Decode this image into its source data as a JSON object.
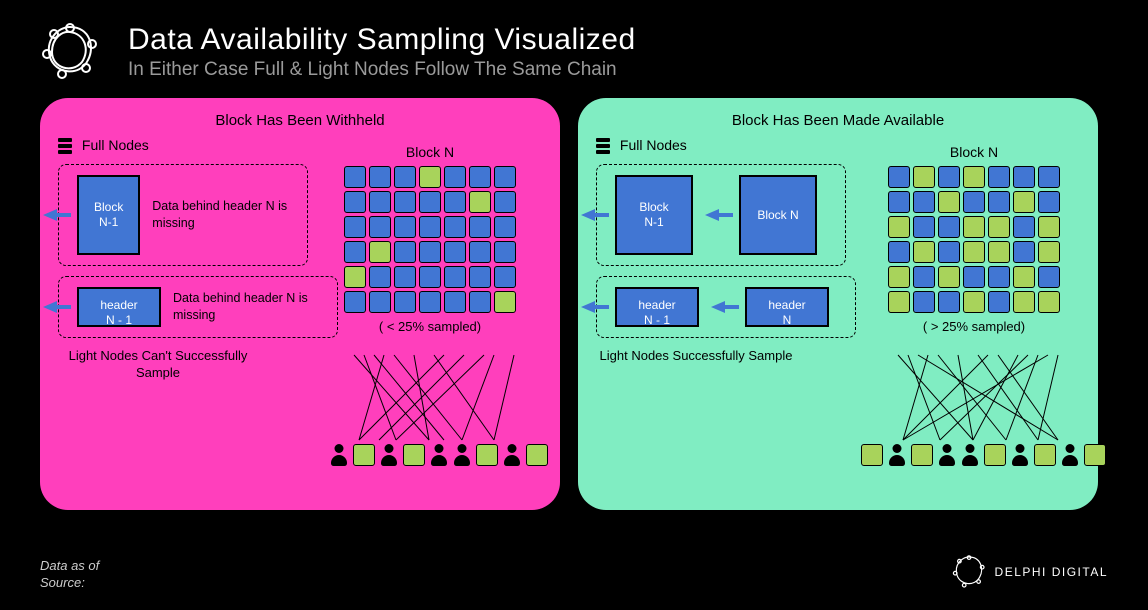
{
  "title": "Data Availability Sampling Visualized",
  "subtitle": "In Either Case Full & Light Nodes Follow The Same Chain",
  "footer1": "Data as of",
  "footer2": "Source:",
  "brand": "DELPHI DIGITAL",
  "colors": {
    "bg": "#000000",
    "panel_left": "#ff3fbc",
    "panel_right": "#80edc2",
    "block_fill": "#4176d3",
    "cell_blue": "#4176d3",
    "cell_green": "#a8d35b",
    "border": "#000000"
  },
  "left": {
    "title": "Block Has Been Withheld",
    "full_nodes_label": "Full Nodes",
    "block_n1": "Block\nN-1",
    "desc1": "Data behind header N is missing",
    "header_n1": "header\nN - 1",
    "desc2": "Data behind header N is missing",
    "grid_label": "Block N",
    "grid_caption": "( < 25% sampled)",
    "light_label": "Light Nodes Can't Successfully Sample",
    "grid": [
      [
        "b",
        "b",
        "b",
        "g",
        "b",
        "b",
        "b"
      ],
      [
        "b",
        "b",
        "b",
        "b",
        "b",
        "g",
        "b"
      ],
      [
        "b",
        "b",
        "b",
        "b",
        "b",
        "b",
        "b"
      ],
      [
        "b",
        "g",
        "b",
        "b",
        "b",
        "b",
        "b"
      ],
      [
        "g",
        "b",
        "b",
        "b",
        "b",
        "b",
        "b"
      ],
      [
        "b",
        "b",
        "b",
        "b",
        "b",
        "b",
        "g"
      ]
    ]
  },
  "right": {
    "title": "Block Has Been Made Available",
    "full_nodes_label": "Full Nodes",
    "block_n1": "Block\nN-1",
    "block_n": "Block N",
    "header_n1": "header\nN - 1",
    "header_n": "header\nN",
    "grid_label": "Block N",
    "grid_caption": "( > 25% sampled)",
    "light_label": "Light Nodes Successfully Sample",
    "grid": [
      [
        "b",
        "g",
        "b",
        "g",
        "b",
        "b",
        "b"
      ],
      [
        "b",
        "b",
        "g",
        "b",
        "b",
        "g",
        "b"
      ],
      [
        "g",
        "b",
        "b",
        "g",
        "g",
        "b",
        "g"
      ],
      [
        "b",
        "g",
        "b",
        "g",
        "g",
        "b",
        "g"
      ],
      [
        "g",
        "b",
        "g",
        "b",
        "b",
        "g",
        "b"
      ],
      [
        "g",
        "b",
        "b",
        "g",
        "b",
        "g",
        "g"
      ]
    ]
  }
}
